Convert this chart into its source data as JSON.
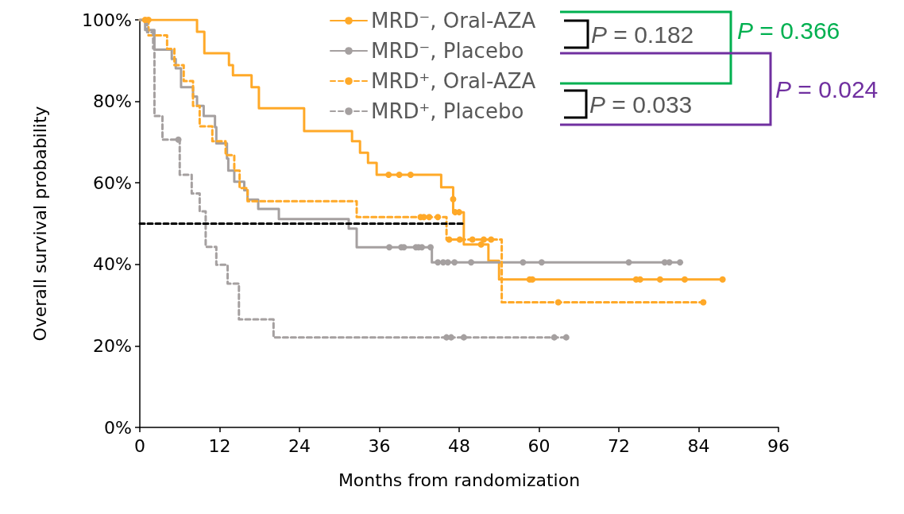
{
  "chart_data": {
    "type": "step",
    "xlabel": "Months from randomization",
    "ylabel": "Overall survival probability",
    "xlim": [
      0,
      96
    ],
    "xticks": [
      0,
      12,
      24,
      36,
      48,
      60,
      72,
      84,
      96
    ],
    "ylim": [
      0,
      100
    ],
    "yticks": [
      {
        "value": 0,
        "label": "0%"
      },
      {
        "value": 20,
        "label": "20%"
      },
      {
        "value": 40,
        "label": "40%"
      },
      {
        "value": 60,
        "label": "60%"
      },
      {
        "value": 80,
        "label": "80%"
      },
      {
        "value": 100,
        "label": "100%"
      }
    ],
    "grid": false,
    "legend": "top right",
    "series": [
      {
        "name": "MRD⁻, Oral-AZA",
        "color": "#ffa928",
        "line_style": "solid",
        "marker": "none",
        "x": [
          0,
          8.6,
          9.7,
          13.4,
          14,
          16.8,
          17.9,
          24.7,
          31.9,
          33.1,
          34.3,
          35.6,
          45.3,
          47.1,
          48.7,
          52.4,
          54,
          87.6
        ],
        "values": [
          100,
          97.1,
          91.8,
          88.9,
          86.4,
          83.5,
          78.3,
          72.7,
          70.2,
          67.4,
          64.9,
          62,
          58.9,
          52.8,
          44.9,
          40.9,
          36.3,
          36.3
        ]
      },
      {
        "name": "MRD⁻, Placebo",
        "color": "#a5a0a0",
        "line_style": "solid",
        "marker": "none",
        "x": [
          0,
          0.8,
          2.2,
          4.8,
          5.4,
          6.2,
          8,
          8.6,
          9.6,
          11.3,
          11.5,
          13.1,
          13.3,
          14.2,
          15.7,
          16.2,
          17.8,
          20.9,
          31.4,
          32.6,
          43.9,
          81.2
        ],
        "values": [
          100,
          97.5,
          92.7,
          90.4,
          88.1,
          83.5,
          81.2,
          78.9,
          76.4,
          73.7,
          69.7,
          66,
          63,
          60.3,
          58.2,
          55.9,
          53.6,
          51.1,
          48.8,
          44.2,
          40.5,
          40.5
        ]
      },
      {
        "name": "MRD⁺, Oral-AZA",
        "color": "#ffa928",
        "line_style": "dashed",
        "marker": "none",
        "x": [
          0,
          1.3,
          4.1,
          5.2,
          6.6,
          8,
          9,
          10.9,
          12.9,
          14.2,
          15,
          16.2,
          32.6,
          46.1,
          54.4,
          84.7
        ],
        "values": [
          100,
          96.2,
          92.9,
          88.9,
          85,
          78.9,
          73.9,
          70.2,
          66.8,
          63,
          58.7,
          55.5,
          51.6,
          46.1,
          30.7,
          30.7
        ]
      },
      {
        "name": "MRD⁺, Placebo",
        "color": "#a5a0a0",
        "line_style": "dashed",
        "marker": "none",
        "x": [
          0,
          1.1,
          2,
          2.2,
          3.4,
          6,
          7.8,
          9,
          9.9,
          11.5,
          13.2,
          14.9,
          20.1,
          64.1
        ],
        "values": [
          100,
          97,
          93,
          76.4,
          70.6,
          62,
          57.4,
          53,
          44.3,
          39.9,
          35.3,
          26.5,
          22.1,
          22.1
        ]
      },
      {
        "type": "scatter",
        "color": "#ffa928",
        "marker": "circle",
        "x": [
          0.8,
          1.3,
          37.4,
          39,
          40.7,
          47.1,
          47.4,
          48,
          51.3,
          58.6,
          59,
          74.6,
          75.2,
          78.2,
          81.9,
          87.6
        ],
        "values": [
          100,
          100,
          62,
          62,
          62,
          56,
          52.8,
          52.8,
          44.9,
          36.3,
          36.3,
          36.3,
          36.3,
          36.3,
          36.3,
          36.3
        ]
      },
      {
        "type": "scatter",
        "color": "#a5a0a0",
        "marker": "circle",
        "x": [
          37.5,
          39.3,
          39.7,
          41.5,
          41.9,
          42.4,
          43.7,
          44.8,
          45.6,
          46.3,
          47.3,
          49.8,
          57.6,
          60.4,
          73.5,
          78.9,
          79.6,
          81.2
        ],
        "values": [
          44.2,
          44.2,
          44.2,
          44.2,
          44.2,
          44.2,
          44.2,
          40.5,
          40.5,
          40.5,
          40.5,
          40.5,
          40.5,
          40.5,
          40.5,
          40.5,
          40.5,
          40.5
        ]
      },
      {
        "type": "scatter",
        "color": "#ffa928",
        "marker": "circle",
        "x": [
          42.2,
          42.7,
          43.5,
          44.8,
          46.5,
          48.1,
          50,
          51.7,
          52.8,
          62.9,
          84.7
        ],
        "values": [
          51.6,
          51.6,
          51.6,
          51.6,
          46.1,
          46.1,
          46.1,
          46.1,
          46.1,
          30.7,
          30.7
        ]
      },
      {
        "type": "scatter",
        "color": "#a5a0a0",
        "marker": "circle",
        "x": [
          5.8,
          46.1,
          46.8,
          48.7,
          62.3,
          64.1
        ],
        "values": [
          70.6,
          22.1,
          22.1,
          22.1,
          22.1,
          22.1
        ]
      },
      {
        "type": "line",
        "color": "#000000",
        "line_style": "dashed",
        "x": [
          0,
          48.7
        ],
        "values": [
          50,
          50
        ]
      }
    ],
    "annotations": [
      "P = 0.182",
      "P = 0.366",
      "P = 0.024",
      "P = 0.033"
    ]
  }
}
